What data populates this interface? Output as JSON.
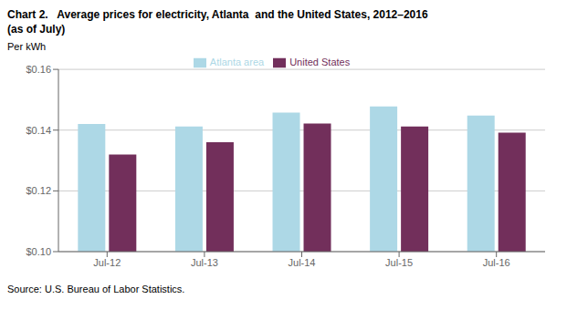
{
  "chart_data": {
    "type": "bar",
    "title": "Chart 2.   Average prices for electricity, Atlanta  and the United States, 2012–2016",
    "subtitle": "(as of July)",
    "y_label": "Per kWh",
    "source": "Source: U.S. Bureau of Labor Statistics.",
    "categories": [
      "Jul-12",
      "Jul-13",
      "Jul-14",
      "Jul-15",
      "Jul-16"
    ],
    "series": [
      {
        "name": "Atlanta area",
        "color": "#ADD8E6",
        "values": [
          0.142,
          0.1412,
          0.1458,
          0.1478,
          0.1448
        ]
      },
      {
        "name": "United States",
        "color": "#722F5B",
        "values": [
          0.132,
          0.136,
          0.1422,
          0.1412,
          0.1392
        ]
      }
    ],
    "ylim": [
      0.1,
      0.16
    ],
    "yticks": [
      {
        "value": 0.1,
        "label": "$0.10"
      },
      {
        "value": 0.12,
        "label": "$0.12"
      },
      {
        "value": 0.14,
        "label": "$0.14"
      },
      {
        "value": 0.16,
        "label": "$0.16"
      }
    ],
    "grid": true,
    "legend": "top"
  }
}
